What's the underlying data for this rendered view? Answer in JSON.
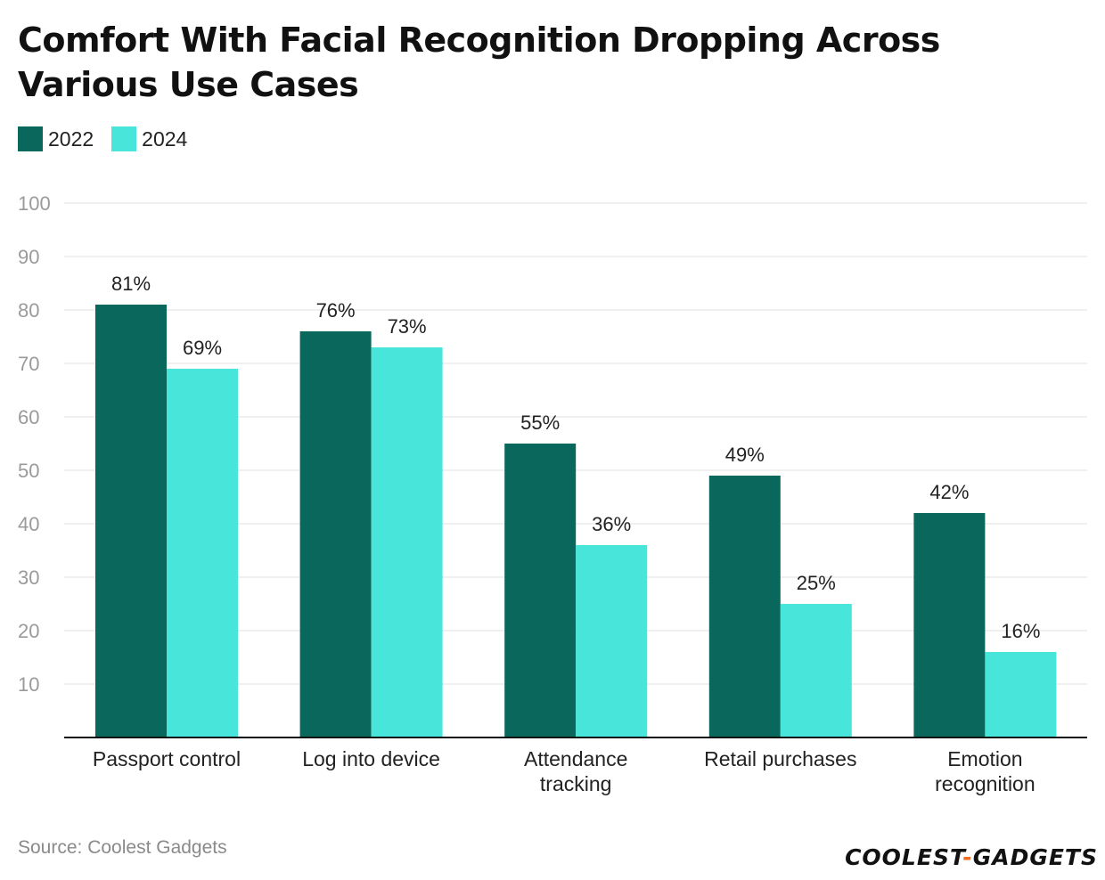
{
  "chart_data": {
    "type": "bar",
    "title": "Comfort With Facial Recognition Dropping Across Various Use Cases",
    "categories": [
      [
        "Passport control"
      ],
      [
        "Log into device"
      ],
      [
        "Attendance",
        "tracking"
      ],
      [
        "Retail purchases"
      ],
      [
        "Emotion",
        "recognition"
      ]
    ],
    "series": [
      {
        "name": "2022",
        "color": "#0a675b",
        "values": [
          81,
          76,
          55,
          49,
          42
        ]
      },
      {
        "name": "2024",
        "color": "#48e6da",
        "values": [
          69,
          73,
          36,
          25,
          16
        ]
      }
    ],
    "value_suffix": "%",
    "yticks": [
      10,
      20,
      30,
      40,
      50,
      60,
      70,
      80,
      90,
      100
    ],
    "ylim": [
      0,
      100
    ],
    "xlabel": "",
    "ylabel": "",
    "grid": true,
    "legend_position": "top-left"
  },
  "footer": {
    "source": "Source: Coolest Gadgets",
    "brand_left": "COOLEST",
    "brand_dash": "-",
    "brand_right": "GADGETS"
  }
}
